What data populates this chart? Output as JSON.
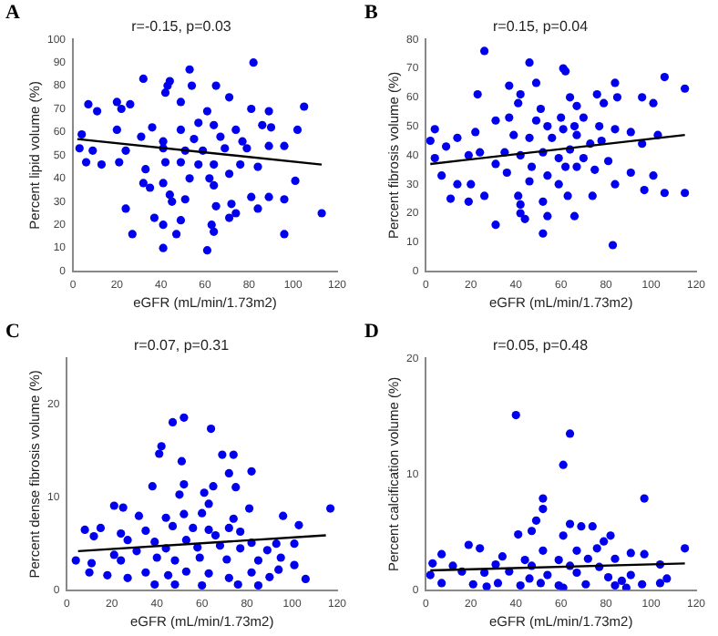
{
  "chart_data": [
    {
      "type": "scatter",
      "title": "r=-0.15, p=0.03",
      "xlabel": "eGFR (mL/min/1.73m2)",
      "ylabel": "Percent lipid volume (%)",
      "annotations": [
        "A"
      ],
      "xlim": [
        0,
        120
      ],
      "xticks": [
        0,
        20,
        40,
        60,
        80,
        100,
        120
      ],
      "ylim": [
        0,
        100
      ],
      "yticks": [
        0,
        10,
        20,
        30,
        40,
        50,
        60,
        70,
        80,
        90,
        100
      ],
      "marker": "circle",
      "series": [
        {
          "color": "#0000ee",
          "x": [
            82,
            53,
            32,
            44,
            43,
            54,
            65,
            7,
            20,
            26,
            71,
            49,
            42,
            105,
            11,
            22,
            36,
            61,
            81,
            89,
            64,
            57,
            49,
            74,
            86,
            90,
            102,
            4,
            20,
            31,
            41,
            55,
            67,
            77,
            89,
            96,
            3,
            9,
            24,
            41,
            51,
            59,
            69,
            79,
            6,
            13,
            21,
            42,
            49,
            57,
            64,
            76,
            84,
            33,
            62,
            71,
            53,
            101,
            41,
            32,
            64,
            35,
            44,
            51,
            81,
            89,
            72,
            65,
            24,
            45,
            74,
            84,
            96,
            71,
            37,
            49,
            41,
            63,
            64,
            47,
            27,
            96,
            113,
            41,
            61
          ],
          "values": [
            90,
            87,
            83,
            82,
            80,
            80,
            80,
            72,
            73,
            72,
            75,
            73,
            77,
            71,
            69,
            70,
            62,
            69,
            70,
            69,
            63,
            64,
            61,
            61,
            63,
            62,
            61,
            59,
            61,
            58,
            56,
            57,
            58,
            56,
            54,
            54,
            53,
            52,
            52,
            53,
            52,
            52,
            53,
            53,
            47,
            46,
            47,
            47,
            47,
            46,
            46,
            46,
            45,
            44,
            40,
            42,
            40,
            39,
            38,
            38,
            37,
            36,
            33,
            31,
            32,
            32,
            29,
            28,
            27,
            30,
            25,
            27,
            31,
            23,
            23,
            22,
            20,
            20,
            17,
            16,
            16,
            16,
            25,
            10,
            9
          ]
        },
        {
          "type": "line",
          "color": "#000000",
          "marker": "none",
          "x": [
            2,
            113
          ],
          "values": [
            57,
            46
          ]
        }
      ]
    },
    {
      "type": "scatter",
      "title": "r=0.15, p=0.04",
      "xlabel": "eGFR (mL/min/1.73m2)",
      "ylabel": "Percent fibrosis volume (%)",
      "annotations": [
        "B"
      ],
      "xlim": [
        0,
        120
      ],
      "xticks": [
        0,
        20,
        40,
        60,
        80,
        100,
        120
      ],
      "ylim": [
        0,
        80
      ],
      "yticks": [
        0,
        10,
        20,
        30,
        40,
        50,
        60,
        70,
        80
      ],
      "marker": "circle",
      "series": [
        {
          "color": "#0000ee",
          "x": [
            26,
            46,
            61,
            62,
            106,
            37,
            49,
            84,
            23,
            42,
            64,
            76,
            85,
            96,
            115,
            41,
            51,
            67,
            79,
            101,
            37,
            31,
            49,
            70,
            60,
            4,
            54,
            61,
            66,
            77,
            84,
            91,
            39,
            22,
            2,
            14,
            9,
            46,
            56,
            67,
            73,
            78,
            96,
            103,
            35,
            24,
            19,
            4,
            52,
            64,
            59,
            70,
            42,
            81,
            31,
            47,
            62,
            67,
            75,
            7,
            36,
            54,
            91,
            101,
            14,
            20,
            46,
            59,
            84,
            97,
            106,
            115,
            11,
            19,
            26,
            41,
            52,
            63,
            74,
            42,
            42,
            44,
            54,
            66,
            31,
            52,
            83
          ],
          "values": [
            76,
            72,
            70,
            69,
            67,
            64,
            65,
            65,
            61,
            61,
            60,
            61,
            60,
            60,
            63,
            58,
            56,
            57,
            58,
            58,
            53,
            52,
            52,
            53,
            53,
            49,
            50,
            49,
            50,
            50,
            49,
            48,
            47,
            48,
            45,
            46,
            43,
            46,
            46,
            47,
            44,
            45,
            44,
            47,
            41,
            41,
            40,
            39,
            41,
            42,
            39,
            39,
            40,
            38,
            37,
            36,
            36,
            36,
            35,
            33,
            34,
            33,
            34,
            33,
            30,
            30,
            31,
            30,
            30,
            28,
            27,
            27,
            25,
            24,
            26,
            26,
            24,
            26,
            26,
            23,
            20,
            18,
            19,
            19,
            16,
            13,
            9
          ]
        },
        {
          "type": "line",
          "color": "#000000",
          "marker": "none",
          "x": [
            2,
            115
          ],
          "values": [
            37,
            47
          ]
        }
      ]
    },
    {
      "type": "scatter",
      "title": "r=0.07, p=0.31",
      "xlabel": "eGFR (mL/min/1.73m2)",
      "ylabel": "Percent dense fibrosis volume (%)",
      "annotations": [
        "C"
      ],
      "xlim": [
        0,
        120
      ],
      "xticks": [
        0,
        20,
        40,
        60,
        80,
        100,
        120
      ],
      "ylim": [
        0,
        25
      ],
      "yticks": [
        0,
        10,
        20
      ],
      "marker": "circle",
      "series": [
        {
          "color": "#0000ee",
          "x": [
            47,
            52,
            64,
            42,
            41,
            69,
            74,
            51,
            72,
            82,
            38,
            52,
            65,
            75,
            50,
            61,
            63,
            21,
            25,
            81,
            117,
            32,
            44,
            52,
            60,
            74,
            96,
            56,
            8,
            15,
            24,
            35,
            47,
            63,
            72,
            77,
            103,
            12,
            27,
            39,
            53,
            66,
            82,
            93,
            101,
            21,
            31,
            44,
            58,
            68,
            77,
            89,
            4,
            11,
            24,
            40,
            48,
            59,
            71,
            85,
            95,
            10,
            18,
            27,
            35,
            45,
            53,
            63,
            72,
            82,
            90,
            101,
            106,
            39,
            48,
            60,
            76,
            85,
            94
          ],
          "values": [
            18.1,
            18.6,
            17.4,
            15.5,
            14.7,
            14.6,
            14.6,
            13.9,
            12.6,
            12.8,
            11.2,
            11.4,
            11.2,
            11.1,
            10.3,
            10.5,
            9.3,
            9.1,
            8.9,
            8.8,
            8.8,
            8.0,
            7.8,
            8.2,
            8.3,
            7.7,
            8.0,
            6.7,
            6.5,
            6.7,
            6.1,
            6.4,
            6.9,
            6.5,
            6.7,
            6.3,
            7.0,
            5.8,
            5.4,
            5.2,
            5.4,
            5.9,
            5.1,
            5.0,
            5.0,
            3.8,
            4.2,
            4.5,
            4.6,
            4.8,
            4.5,
            4.3,
            3.2,
            2.9,
            3.2,
            3.5,
            3.2,
            3.5,
            3.3,
            3.2,
            3.5,
            1.9,
            1.6,
            1.3,
            1.9,
            1.6,
            2.0,
            1.8,
            1.3,
            1.9,
            1.4,
            2.7,
            1.2,
            0.6,
            0.6,
            0.5,
            0.6,
            0.5,
            2.2
          ]
        },
        {
          "type": "line",
          "color": "#000000",
          "marker": "none",
          "x": [
            5,
            115
          ],
          "values": [
            4.2,
            5.9
          ]
        }
      ]
    },
    {
      "type": "scatter",
      "title": "r=0.05, p=0.48",
      "xlabel": "eGFR (mL/min/1.73m2)",
      "ylabel": "Percent calcification volume (%)",
      "annotations": [
        "D"
      ],
      "xlim": [
        0,
        120
      ],
      "xticks": [
        0,
        20,
        40,
        60,
        80,
        100,
        120
      ],
      "ylim": [
        0,
        20
      ],
      "yticks": [
        0,
        10,
        20
      ],
      "marker": "circle",
      "series": [
        {
          "color": "#0000ee",
          "x": [
            40,
            64,
            61,
            52,
            52,
            97,
            49,
            41,
            47,
            64,
            69,
            74,
            61,
            82,
            79,
            19,
            24,
            7,
            91,
            97,
            115,
            52,
            67,
            76,
            34,
            44,
            59,
            72,
            84,
            3,
            12,
            31,
            47,
            64,
            77,
            104,
            2,
            16,
            26,
            37,
            54,
            67,
            81,
            91,
            107,
            7,
            21,
            32,
            42,
            51,
            59,
            71,
            84,
            96,
            104,
            27,
            61,
            89,
            46,
            87
          ],
          "values": [
            15.1,
            13.5,
            10.8,
            7.9,
            7.0,
            7.9,
            6.0,
            4.8,
            5.1,
            5.7,
            5.5,
            5.5,
            4.7,
            4.7,
            4.2,
            3.9,
            3.6,
            3.1,
            3.2,
            3.1,
            3.6,
            3.4,
            3.4,
            3.6,
            2.9,
            2.6,
            2.6,
            2.7,
            2.7,
            2.3,
            2.1,
            2.2,
            2.1,
            2.1,
            2.0,
            2.2,
            1.3,
            1.6,
            1.5,
            1.6,
            1.3,
            1.5,
            1.1,
            1.3,
            1.0,
            0.6,
            0.5,
            0.6,
            0.4,
            0.6,
            0.4,
            0.5,
            0.4,
            0.5,
            0.6,
            0.3,
            0.2,
            0.2,
            1.0,
            0.8
          ]
        },
        {
          "type": "line",
          "color": "#000000",
          "marker": "none",
          "x": [
            2,
            115
          ],
          "values": [
            1.7,
            2.3
          ]
        }
      ]
    }
  ]
}
